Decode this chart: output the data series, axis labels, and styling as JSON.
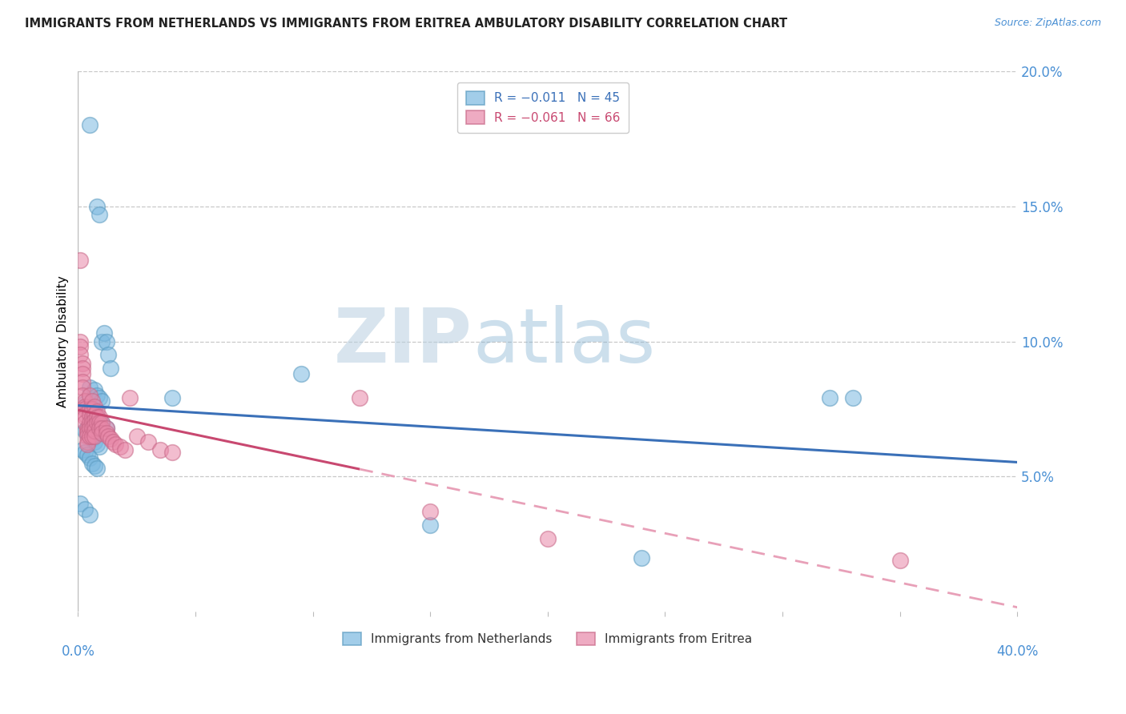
{
  "title": "IMMIGRANTS FROM NETHERLANDS VS IMMIGRANTS FROM ERITREA AMBULATORY DISABILITY CORRELATION CHART",
  "source": "Source: ZipAtlas.com",
  "ylabel": "Ambulatory Disability",
  "watermark_zip": "ZIP",
  "watermark_atlas": "atlas",
  "legend_entries": [
    {
      "label": "R = −0.011   N = 45",
      "color": "#a8c8e8"
    },
    {
      "label": "R = −0.061   N = 66",
      "color": "#f0a0b8"
    }
  ],
  "legend_bottom": [
    {
      "label": "Immigrants from Netherlands",
      "color": "#a8c8e8"
    },
    {
      "label": "Immigrants from Eritrea",
      "color": "#f0a0b8"
    }
  ],
  "xlim": [
    0.0,
    0.4
  ],
  "ylim": [
    0.0,
    0.2
  ],
  "yticks": [
    0.05,
    0.1,
    0.15,
    0.2
  ],
  "ytick_labels": [
    "5.0%",
    "10.0%",
    "15.0%",
    "20.0%"
  ],
  "xtick_left_label": "0.0%",
  "xtick_right_label": "40.0%",
  "netherlands_color": "#7bb8e0",
  "netherlands_edge": "#5a9abf",
  "eritrea_color": "#e888a8",
  "eritrea_edge": "#c86888",
  "netherlands_line_color": "#3a70b8",
  "eritrea_solid_color": "#c84870",
  "eritrea_dash_color": "#e8a0b8",
  "netherlands_scatter": [
    [
      0.005,
      0.18
    ],
    [
      0.008,
      0.15
    ],
    [
      0.009,
      0.147
    ],
    [
      0.01,
      0.1
    ],
    [
      0.011,
      0.103
    ],
    [
      0.012,
      0.1
    ],
    [
      0.013,
      0.095
    ],
    [
      0.014,
      0.09
    ],
    [
      0.005,
      0.083
    ],
    [
      0.007,
      0.082
    ],
    [
      0.008,
      0.08
    ],
    [
      0.009,
      0.079
    ],
    [
      0.01,
      0.078
    ],
    [
      0.04,
      0.079
    ],
    [
      0.003,
      0.077
    ],
    [
      0.004,
      0.076
    ],
    [
      0.005,
      0.075
    ],
    [
      0.006,
      0.074
    ],
    [
      0.007,
      0.073
    ],
    [
      0.008,
      0.072
    ],
    [
      0.009,
      0.071
    ],
    [
      0.01,
      0.07
    ],
    [
      0.012,
      0.068
    ],
    [
      0.003,
      0.067
    ],
    [
      0.004,
      0.066
    ],
    [
      0.005,
      0.065
    ],
    [
      0.006,
      0.064
    ],
    [
      0.007,
      0.063
    ],
    [
      0.008,
      0.062
    ],
    [
      0.009,
      0.061
    ],
    [
      0.002,
      0.06
    ],
    [
      0.003,
      0.059
    ],
    [
      0.004,
      0.058
    ],
    [
      0.005,
      0.057
    ],
    [
      0.006,
      0.055
    ],
    [
      0.007,
      0.054
    ],
    [
      0.008,
      0.053
    ],
    [
      0.001,
      0.04
    ],
    [
      0.003,
      0.038
    ],
    [
      0.005,
      0.036
    ],
    [
      0.095,
      0.088
    ],
    [
      0.15,
      0.032
    ],
    [
      0.24,
      0.02
    ],
    [
      0.32,
      0.079
    ],
    [
      0.33,
      0.079
    ]
  ],
  "eritrea_scatter": [
    [
      0.001,
      0.13
    ],
    [
      0.001,
      0.1
    ],
    [
      0.001,
      0.098
    ],
    [
      0.001,
      0.095
    ],
    [
      0.002,
      0.092
    ],
    [
      0.002,
      0.09
    ],
    [
      0.002,
      0.088
    ],
    [
      0.002,
      0.085
    ],
    [
      0.002,
      0.083
    ],
    [
      0.002,
      0.08
    ],
    [
      0.003,
      0.078
    ],
    [
      0.003,
      0.076
    ],
    [
      0.003,
      0.075
    ],
    [
      0.003,
      0.073
    ],
    [
      0.003,
      0.072
    ],
    [
      0.003,
      0.07
    ],
    [
      0.004,
      0.068
    ],
    [
      0.004,
      0.067
    ],
    [
      0.004,
      0.066
    ],
    [
      0.004,
      0.065
    ],
    [
      0.004,
      0.063
    ],
    [
      0.004,
      0.062
    ],
    [
      0.005,
      0.08
    ],
    [
      0.005,
      0.075
    ],
    [
      0.005,
      0.073
    ],
    [
      0.005,
      0.07
    ],
    [
      0.005,
      0.068
    ],
    [
      0.005,
      0.065
    ],
    [
      0.006,
      0.078
    ],
    [
      0.006,
      0.075
    ],
    [
      0.006,
      0.072
    ],
    [
      0.006,
      0.07
    ],
    [
      0.006,
      0.068
    ],
    [
      0.006,
      0.065
    ],
    [
      0.007,
      0.076
    ],
    [
      0.007,
      0.073
    ],
    [
      0.007,
      0.071
    ],
    [
      0.007,
      0.069
    ],
    [
      0.007,
      0.067
    ],
    [
      0.007,
      0.065
    ],
    [
      0.008,
      0.074
    ],
    [
      0.008,
      0.072
    ],
    [
      0.008,
      0.07
    ],
    [
      0.009,
      0.072
    ],
    [
      0.009,
      0.07
    ],
    [
      0.009,
      0.068
    ],
    [
      0.01,
      0.07
    ],
    [
      0.01,
      0.068
    ],
    [
      0.01,
      0.066
    ],
    [
      0.012,
      0.068
    ],
    [
      0.012,
      0.066
    ],
    [
      0.013,
      0.065
    ],
    [
      0.014,
      0.064
    ],
    [
      0.015,
      0.063
    ],
    [
      0.016,
      0.062
    ],
    [
      0.018,
      0.061
    ],
    [
      0.02,
      0.06
    ],
    [
      0.022,
      0.079
    ],
    [
      0.025,
      0.065
    ],
    [
      0.03,
      0.063
    ],
    [
      0.035,
      0.06
    ],
    [
      0.04,
      0.059
    ],
    [
      0.12,
      0.079
    ],
    [
      0.15,
      0.037
    ],
    [
      0.2,
      0.027
    ],
    [
      0.35,
      0.019
    ]
  ]
}
